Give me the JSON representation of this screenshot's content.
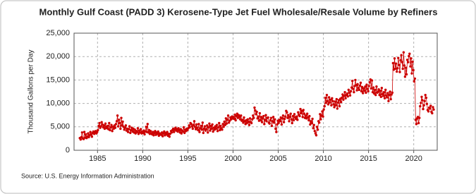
{
  "chart_data": {
    "type": "line",
    "title": "Monthly Gulf Coast (PADD 3) Kerosene-Type Jet Fuel Wholesale/Resale Volume by Refiners",
    "y_label": "Thousand Gallons per Day",
    "source": "Source: U.S. Energy Information Administration",
    "xlim": [
      1982.4,
      2022.6
    ],
    "xticks": [
      1985,
      1990,
      1995,
      2000,
      2005,
      2010,
      2015,
      2020
    ],
    "ylim": [
      0,
      25000
    ],
    "yticks": [
      0,
      {
        "value": 5000,
        "label": "5,000"
      },
      {
        "value": 10000,
        "label": "10,000"
      },
      {
        "value": 15000,
        "label": "15,000"
      },
      {
        "value": 20000,
        "label": "20,000"
      },
      {
        "value": 25000,
        "label": "25,000"
      }
    ],
    "grid": true,
    "markers": true,
    "x": [
      1983.04,
      1983.13,
      1983.21,
      1983.29,
      1983.38,
      1983.46,
      1983.54,
      1983.63,
      1983.71,
      1983.79,
      1983.88,
      1983.96,
      1984.04,
      1984.13,
      1984.21,
      1984.29,
      1984.38,
      1984.46,
      1984.54,
      1984.63,
      1984.71,
      1984.79,
      1984.88,
      1984.96,
      1985.04,
      1985.13,
      1985.21,
      1985.29,
      1985.38,
      1985.46,
      1985.54,
      1985.63,
      1985.71,
      1985.79,
      1985.88,
      1985.96,
      1986.04,
      1986.13,
      1986.21,
      1986.29,
      1986.38,
      1986.46,
      1986.54,
      1986.63,
      1986.71,
      1986.79,
      1986.88,
      1986.96,
      1987.04,
      1987.13,
      1987.21,
      1987.29,
      1987.38,
      1987.46,
      1987.54,
      1987.63,
      1987.71,
      1987.79,
      1987.88,
      1987.96,
      1988.04,
      1988.13,
      1988.21,
      1988.29,
      1988.38,
      1988.46,
      1988.54,
      1988.63,
      1988.71,
      1988.79,
      1988.88,
      1988.96,
      1989.04,
      1989.13,
      1989.21,
      1989.29,
      1989.38,
      1989.46,
      1989.54,
      1989.63,
      1989.71,
      1989.79,
      1989.88,
      1989.96,
      1990.04,
      1990.13,
      1990.21,
      1990.29,
      1990.38,
      1990.46,
      1990.54,
      1990.63,
      1990.71,
      1990.79,
      1990.88,
      1990.96,
      1991.04,
      1991.13,
      1991.21,
      1991.29,
      1991.38,
      1991.46,
      1991.54,
      1991.63,
      1991.71,
      1991.79,
      1991.88,
      1991.96,
      1992.04,
      1992.13,
      1992.21,
      1992.29,
      1992.38,
      1992.46,
      1992.54,
      1992.63,
      1992.71,
      1992.79,
      1992.88,
      1992.96,
      1993.04,
      1993.13,
      1993.21,
      1993.29,
      1993.38,
      1993.46,
      1993.54,
      1993.63,
      1993.71,
      1993.79,
      1993.88,
      1993.96,
      1994.04,
      1994.13,
      1994.21,
      1994.29,
      1994.38,
      1994.46,
      1994.54,
      1994.63,
      1994.71,
      1994.79,
      1994.88,
      1994.96,
      1995.04,
      1995.13,
      1995.21,
      1995.29,
      1995.38,
      1995.46,
      1995.54,
      1995.63,
      1995.71,
      1995.79,
      1995.88,
      1995.96,
      1996.04,
      1996.13,
      1996.21,
      1996.29,
      1996.38,
      1996.46,
      1996.54,
      1996.63,
      1996.71,
      1996.79,
      1996.88,
      1996.96,
      1997.04,
      1997.13,
      1997.21,
      1997.29,
      1997.38,
      1997.46,
      1997.54,
      1997.63,
      1997.71,
      1997.79,
      1997.88,
      1997.96,
      1998.04,
      1998.13,
      1998.21,
      1998.29,
      1998.38,
      1998.46,
      1998.54,
      1998.63,
      1998.71,
      1998.79,
      1998.88,
      1998.96,
      1999.04,
      1999.13,
      1999.21,
      1999.29,
      1999.38,
      1999.46,
      1999.54,
      1999.63,
      1999.71,
      1999.79,
      1999.88,
      1999.96,
      2000.04,
      2000.13,
      2000.21,
      2000.29,
      2000.38,
      2000.46,
      2000.54,
      2000.63,
      2000.71,
      2000.79,
      2000.88,
      2000.96,
      2001.04,
      2001.13,
      2001.21,
      2001.29,
      2001.38,
      2001.46,
      2001.54,
      2001.63,
      2001.71,
      2001.79,
      2001.88,
      2001.96,
      2002.04,
      2002.13,
      2002.21,
      2002.29,
      2002.38,
      2002.46,
      2002.54,
      2002.63,
      2002.71,
      2002.79,
      2002.88,
      2002.96,
      2003.04,
      2003.13,
      2003.21,
      2003.29,
      2003.38,
      2003.46,
      2003.54,
      2003.63,
      2003.71,
      2003.79,
      2003.88,
      2003.96,
      2004.04,
      2004.13,
      2004.21,
      2004.29,
      2004.38,
      2004.46,
      2004.54,
      2004.63,
      2004.71,
      2004.79,
      2004.88,
      2004.96,
      2005.04,
      2005.13,
      2005.21,
      2005.29,
      2005.38,
      2005.46,
      2005.54,
      2005.63,
      2005.71,
      2005.79,
      2005.88,
      2005.96,
      2006.04,
      2006.13,
      2006.21,
      2006.29,
      2006.38,
      2006.46,
      2006.54,
      2006.63,
      2006.71,
      2006.79,
      2006.88,
      2006.96,
      2007.04,
      2007.13,
      2007.21,
      2007.29,
      2007.38,
      2007.46,
      2007.54,
      2007.63,
      2007.71,
      2007.79,
      2007.88,
      2007.96,
      2008.04,
      2008.13,
      2008.21,
      2008.29,
      2008.38,
      2008.46,
      2008.54,
      2008.63,
      2008.71,
      2008.79,
      2008.88,
      2008.96,
      2009.04,
      2009.13,
      2009.21,
      2009.29,
      2009.38,
      2009.46,
      2009.54,
      2009.63,
      2009.71,
      2009.79,
      2009.88,
      2009.96,
      2010.04,
      2010.13,
      2010.21,
      2010.29,
      2010.38,
      2010.46,
      2010.54,
      2010.63,
      2010.71,
      2010.79,
      2010.88,
      2010.96,
      2011.04,
      2011.13,
      2011.21,
      2011.29,
      2011.38,
      2011.46,
      2011.54,
      2011.63,
      2011.71,
      2011.79,
      2011.88,
      2011.96,
      2012.04,
      2012.13,
      2012.21,
      2012.29,
      2012.38,
      2012.46,
      2012.54,
      2012.63,
      2012.71,
      2012.79,
      2012.88,
      2012.96,
      2013.04,
      2013.13,
      2013.21,
      2013.29,
      2013.38,
      2013.46,
      2013.54,
      2013.63,
      2013.71,
      2013.79,
      2013.88,
      2013.96,
      2014.04,
      2014.13,
      2014.21,
      2014.29,
      2014.38,
      2014.46,
      2014.54,
      2014.63,
      2014.71,
      2014.79,
      2014.88,
      2014.96,
      2015.04,
      2015.13,
      2015.21,
      2015.29,
      2015.38,
      2015.46,
      2015.54,
      2015.63,
      2015.71,
      2015.79,
      2015.88,
      2015.96,
      2016.04,
      2016.13,
      2016.21,
      2016.29,
      2016.38,
      2016.46,
      2016.54,
      2016.63,
      2016.71,
      2016.79,
      2016.88,
      2016.96,
      2017.04,
      2017.13,
      2017.21,
      2017.29,
      2017.38,
      2017.46,
      2017.54,
      2017.63,
      2017.71,
      2017.79,
      2017.88,
      2017.96,
      2018.04,
      2018.13,
      2018.21,
      2018.29,
      2018.38,
      2018.46,
      2018.54,
      2018.63,
      2018.71,
      2018.79,
      2018.88,
      2018.96,
      2019.04,
      2019.13,
      2019.21,
      2019.29,
      2019.38,
      2019.46,
      2019.54,
      2019.63,
      2019.71,
      2019.79,
      2019.88,
      2019.96,
      2020.04,
      2020.13,
      2020.21,
      2020.29,
      2020.38,
      2020.46,
      2020.54,
      2020.63,
      2020.71,
      2020.79,
      2020.88,
      2020.96,
      2021.04,
      2021.13,
      2021.21,
      2021.29,
      2021.38,
      2021.46,
      2021.54,
      2021.63,
      2021.71,
      2021.79,
      2021.88,
      2021.96,
      2022.04,
      2022.13,
      2022.21
    ],
    "series": [
      {
        "color": "#cc0000",
        "values": [
          2600,
          2300,
          2800,
          3800,
          2500,
          2400,
          3900,
          2700,
          3400,
          2600,
          2900,
          3600,
          2800,
          3200,
          3900,
          3400,
          2900,
          3700,
          4000,
          3500,
          3800,
          4100,
          3600,
          3900,
          4300,
          5200,
          5800,
          4800,
          5100,
          6000,
          5500,
          4900,
          5300,
          4600,
          5700,
          5000,
          4700,
          5200,
          4500,
          5800,
          4300,
          4900,
          5400,
          4100,
          5000,
          4600,
          5300,
          4800,
          5600,
          6200,
          7400,
          5100,
          6500,
          5800,
          4600,
          6900,
          5300,
          6100,
          5000,
          4400,
          4800,
          5300,
          4200,
          4600,
          3900,
          4500,
          5100,
          3700,
          4300,
          4800,
          4000,
          4600,
          3800,
          4400,
          3600,
          4100,
          3900,
          4700,
          3500,
          4200,
          3800,
          4500,
          3600,
          4000,
          3700,
          4200,
          3400,
          4000,
          5000,
          3900,
          5600,
          3800,
          4300,
          3500,
          4100,
          3600,
          3400,
          3900,
          3200,
          3700,
          4100,
          3300,
          3800,
          3500,
          4000,
          3100,
          3600,
          3400,
          3300,
          3800,
          3000,
          3600,
          4000,
          3200,
          3700,
          3400,
          3900,
          3100,
          3500,
          2900,
          3500,
          4100,
          3800,
          4300,
          4600,
          3900,
          4400,
          4800,
          4200,
          4500,
          4000,
          4700,
          4300,
          3800,
          4500,
          3600,
          4200,
          4000,
          4900,
          3700,
          4400,
          4100,
          4600,
          4300,
          4700,
          5300,
          4900,
          5800,
          5600,
          5100,
          4600,
          5400,
          6200,
          5000,
          4500,
          5500,
          4800,
          4300,
          5600,
          3900,
          4700,
          5200,
          4400,
          5900,
          3700,
          4600,
          5100,
          4200,
          4500,
          5300,
          3800,
          4900,
          5700,
          4200,
          5200,
          4600,
          5500,
          4000,
          4800,
          4400,
          5100,
          4600,
          5400,
          4100,
          4900,
          5800,
          4300,
          5200,
          4700,
          4400,
          5600,
          5000,
          6100,
          5400,
          6800,
          5700,
          6500,
          7400,
          5900,
          6300,
          7000,
          6600,
          7200,
          6800,
          7100,
          6700,
          7600,
          6400,
          7300,
          7800,
          6900,
          7500,
          7100,
          6600,
          7400,
          6300,
          6500,
          5900,
          7000,
          6200,
          5600,
          6400,
          5800,
          6600,
          6100,
          5400,
          6800,
          6000,
          5800,
          6600,
          7400,
          6900,
          9100,
          8500,
          7700,
          8200,
          6800,
          7200,
          6300,
          7900,
          6400,
          7100,
          6000,
          6800,
          7300,
          5600,
          6500,
          7500,
          6200,
          6900,
          7000,
          5900,
          5700,
          6400,
          6900,
          5200,
          6200,
          7100,
          5900,
          6600,
          4600,
          3900,
          5500,
          6300,
          5800,
          6500,
          6200,
          7000,
          5500,
          6800,
          7400,
          6000,
          6700,
          7200,
          8400,
          8100,
          6900,
          7500,
          6200,
          7100,
          7800,
          6600,
          5800,
          7300,
          6400,
          7700,
          7000,
          6700,
          7200,
          6500,
          8100,
          7600,
          7300,
          8800,
          7900,
          8400,
          7100,
          8600,
          7800,
          6900,
          7400,
          6800,
          7800,
          7000,
          6400,
          7300,
          5500,
          6200,
          5800,
          6700,
          4700,
          5400,
          4100,
          3600,
          3200,
          5000,
          4400,
          6200,
          5900,
          7700,
          6600,
          7400,
          8300,
          7200,
          8700,
          9400,
          11200,
          10100,
          11800,
          10500,
          9800,
          11300,
          10200,
          10800,
          9600,
          11100,
          10500,
          9800,
          9200,
          10400,
          9600,
          10900,
          8900,
          10200,
          10700,
          9400,
          11000,
          10300,
          11200,
          11900,
          10800,
          11600,
          12400,
          11100,
          11800,
          12100,
          11500,
          12900,
          12300,
          11700,
          12600,
          13400,
          14800,
          13100,
          12400,
          13700,
          15000,
          13900,
          12800,
          14100,
          13300,
          12900,
          13800,
          14400,
          12600,
          13500,
          12200,
          13200,
          12700,
          13600,
          12300,
          14000,
          13100,
          12600,
          13700,
          14500,
          15100,
          13200,
          14900,
          12400,
          13400,
          12100,
          12900,
          11800,
          13600,
          12300,
          12500,
          13000,
          11800,
          12700,
          11400,
          13300,
          12000,
          11600,
          12400,
          11100,
          12900,
          11700,
          11300,
          12200,
          10500,
          11800,
          12500,
          10900,
          11900,
          12300,
          18600,
          17200,
          19600,
          17400,
          18500,
          16800,
          17500,
          19700,
          18200,
          16700,
          19200,
          20300,
          18800,
          17400,
          20900,
          18100,
          15700,
          17600,
          16200,
          19300,
          18800,
          20100,
          20600,
          17900,
          19600,
          16400,
          18900,
          17100,
          14700,
          15300,
          6500,
          5600,
          6800,
          7100,
          5800,
          6900,
          9400,
          10100,
          11400,
          10700,
          8800,
          9600,
          10500,
          11800,
          11200,
          9900,
          8600,
          8300,
          9100,
          8900,
          9500,
          8200,
          7900,
          9200,
          8700
        ]
      }
    ]
  }
}
